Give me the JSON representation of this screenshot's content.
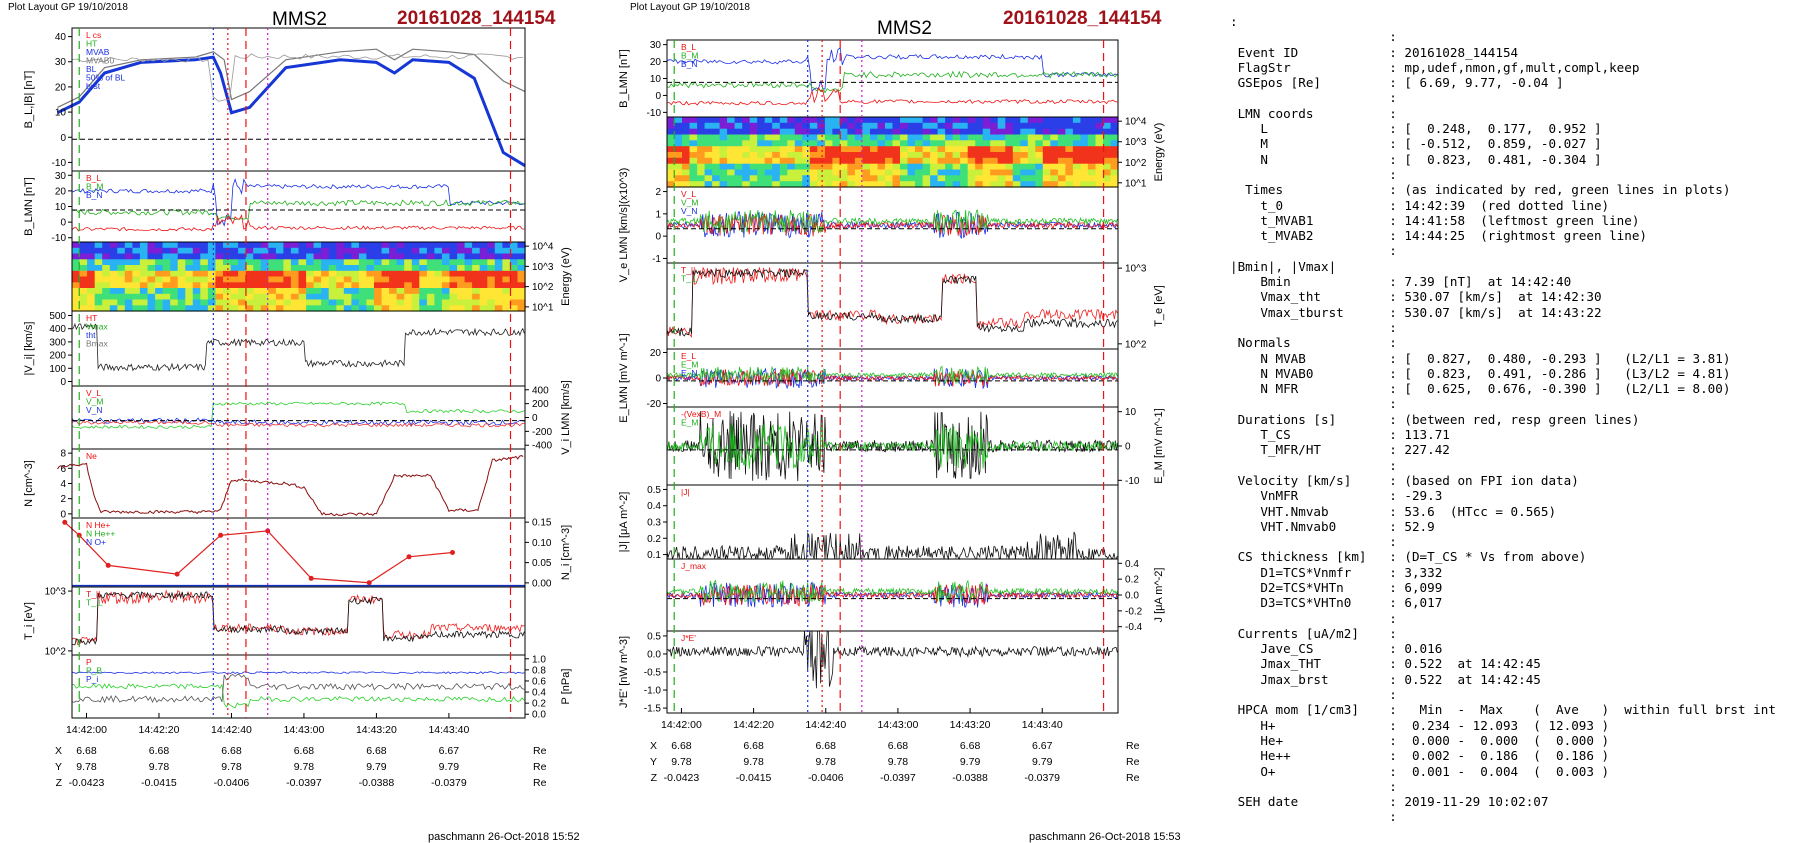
{
  "page_header": {
    "left": {
      "caption": "Plot Layout GP 19/10/2018",
      "spacecraft": "MMS2",
      "event": "20161028_144154",
      "footer": "paschmann 26-Oct-2018 15:52"
    },
    "middle": {
      "caption": "Plot Layout GP 19/10/2018",
      "spacecraft": "MMS2",
      "event": "20161028_144154",
      "footer": "paschmann 26-Oct-2018 15:53"
    }
  },
  "time_axis": {
    "tick_labels": [
      "14:42:00",
      "14:42:20",
      "14:42:40",
      "14:43:00",
      "14:43:20",
      "14:43:40"
    ],
    "tick_seconds": [
      0,
      20,
      40,
      60,
      80,
      100
    ],
    "range_seconds": [
      -4,
      121
    ],
    "markers": {
      "red_dashed": [
        44,
        117
      ],
      "red_dotted": 39,
      "green_dashed": [
        -2,
        145
      ],
      "blue_dotted": 35,
      "magenta_dotted": 50
    }
  },
  "position_rows": [
    {
      "label": "X",
      "values": [
        "6.68",
        "6.68",
        "6.68",
        "6.68",
        "6.68",
        "6.67"
      ],
      "unit": "Re"
    },
    {
      "label": "Y",
      "values": [
        "9.78",
        "9.78",
        "9.78",
        "9.78",
        "9.79",
        "9.79"
      ],
      "unit": "Re"
    },
    {
      "label": "Z",
      "values": [
        "-0.0423",
        "-0.0415",
        "-0.0406",
        "-0.0397",
        "-0.0388",
        "-0.0379"
      ],
      "unit": "Re"
    }
  ],
  "left_panels": [
    {
      "id": "bl",
      "ylabel": "B_L,|B| [nT]",
      "side": "left",
      "ticks": [
        "40",
        "30",
        "20",
        "10",
        "0",
        "-10"
      ],
      "legend": [
        "L cs",
        "HT",
        "MVAB",
        "MVAB0",
        "BL",
        "50% of BL",
        "brst"
      ]
    },
    {
      "id": "blmn",
      "ylabel": "B_LMN [nT]",
      "side": "left",
      "ticks": [
        "30",
        "20",
        "10",
        "0",
        "-10"
      ],
      "legend": [
        "B_L",
        "B_M",
        "B_N"
      ]
    },
    {
      "id": "espec",
      "ylabel": "Energy (eV)",
      "side": "right",
      "ticks": [
        "10^4",
        "10^3",
        "10^2",
        "10^1"
      ],
      "legend": []
    },
    {
      "id": "vi",
      "ylabel": "|V_i| [km/s]",
      "side": "left",
      "ticks": [
        "500",
        "400",
        "300",
        "200",
        "100",
        "0"
      ],
      "legend": [
        "HT",
        "Vmax",
        "tht",
        "Bmax"
      ]
    },
    {
      "id": "vilmn",
      "ylabel": "V_i LMN [km/s]",
      "side": "right",
      "ticks": [
        "400",
        "200",
        "0",
        "-200",
        "-400"
      ],
      "legend": [
        "V_L",
        "V_M",
        "V_N"
      ]
    },
    {
      "id": "n",
      "ylabel": "N [cm^-3]",
      "side": "left",
      "ticks": [
        "8",
        "6",
        "4",
        "2",
        "0"
      ],
      "legend": [
        "Ne"
      ]
    },
    {
      "id": "hpca",
      "ylabel": "N_i [cm^-3]",
      "side": "right",
      "ticks": [
        "0.15",
        "0.10",
        "0.05",
        "0.00"
      ],
      "legend": [
        "N He+",
        "N He++",
        "N O+"
      ]
    },
    {
      "id": "ti",
      "ylabel": "T_i [eV]",
      "side": "left",
      "ticks": [
        "10^3",
        "10^2"
      ],
      "legend": [
        "T_||",
        "T_⊥"
      ]
    },
    {
      "id": "p",
      "ylabel": "P [nPa]",
      "side": "right",
      "ticks": [
        "1.0",
        "0.8",
        "0.6",
        "0.4",
        "0.2",
        "0.0"
      ],
      "legend": [
        "P",
        "P_B",
        "P_i"
      ]
    }
  ],
  "middle_panels": [
    {
      "id": "blmn2",
      "ylabel": "B_LMN [nT]",
      "side": "left",
      "ticks": [
        "30",
        "20",
        "10",
        "0",
        "-10"
      ],
      "legend": [
        "B_L",
        "B_M",
        "B_N"
      ]
    },
    {
      "id": "especE",
      "ylabel": "Energy (eV)",
      "side": "right",
      "ticks": [
        "10^4",
        "10^3",
        "10^2",
        "10^1"
      ],
      "legend": []
    },
    {
      "id": "ve",
      "ylabel": "V_e LMN [km/s](x10^3)",
      "side": "left",
      "ticks": [
        "2",
        "1",
        "0",
        "-1"
      ],
      "legend": [
        "V_L",
        "V_M",
        "V_N"
      ]
    },
    {
      "id": "te",
      "ylabel": "T_e [eV]",
      "side": "right",
      "ticks": [
        "10^3",
        "10^2"
      ],
      "legend": [
        "T_||",
        "T_⊥"
      ]
    },
    {
      "id": "elmn",
      "ylabel": "E_LMN [mV m^-1]",
      "side": "left",
      "ticks": [
        "20",
        "0",
        "-20"
      ],
      "legend": [
        "E_L",
        "E_M",
        "E_N"
      ]
    },
    {
      "id": "em",
      "ylabel": "E_M [mV m^-1]",
      "side": "right",
      "ticks": [
        "10",
        "0",
        "-10"
      ],
      "legend": [
        "-(VexB)_M",
        "E_M"
      ]
    },
    {
      "id": "j",
      "ylabel": "|J| [μA m^-2]",
      "side": "left",
      "ticks": [
        "0.5",
        "0.4",
        "0.3",
        "0.2",
        "0.1"
      ],
      "legend": [
        "|J|"
      ]
    },
    {
      "id": "jlmn",
      "ylabel": "J [μA m^-2]",
      "side": "right",
      "ticks": [
        "0.4",
        "0.2",
        "0.0",
        "-0.2",
        "-0.4"
      ],
      "legend": [
        "J_max"
      ]
    },
    {
      "id": "jdote",
      "ylabel": "J*E' [nW m^-3]",
      "side": "left",
      "ticks": [
        "0.5",
        "0.0",
        "-0.5",
        "-1.0",
        "-1.5"
      ],
      "legend": [
        "J*E'"
      ]
    }
  ],
  "info_rows": [
    {
      "k": "",
      "v": ""
    },
    {
      "k": "Event ID",
      "v": "20161028_144154"
    },
    {
      "k": "FlagStr",
      "v": "mp,udef,nmon,gf,mult,compl,keep"
    },
    {
      "k": "GSEpos [Re]",
      "v": "[ 6.69, 9.77, -0.04 ]"
    },
    {
      "k": "",
      "v": ""
    },
    {
      "k": "LMN coords",
      "v": ""
    },
    {
      "k": "   L",
      "v": "[  0.248,  0.177,  0.952 ]"
    },
    {
      "k": "   M",
      "v": "[ -0.512,  0.859, -0.027 ]"
    },
    {
      "k": "   N",
      "v": "[  0.823,  0.481, -0.304 ]"
    },
    {
      "k": "",
      "v": ""
    },
    {
      "k": " Times",
      "v": "(as indicated by red, green lines in plots)"
    },
    {
      "k": "   t_0",
      "v": "14:42:39  (red dotted line)"
    },
    {
      "k": "   t_MVAB1",
      "v": "14:41:58  (leftmost green line)"
    },
    {
      "k": "   t_MVAB2",
      "v": "14:44:25  (rightmost green line)"
    },
    {
      "k": "",
      "v": ""
    },
    {
      "k": "|Bmin|, |Vmax|",
      "v": "",
      "bare": true
    },
    {
      "k": "   Bmin",
      "v": "7.39 [nT]  at 14:42:40"
    },
    {
      "k": "   Vmax_tht",
      "v": "530.07 [km/s]  at 14:42:30"
    },
    {
      "k": "   Vmax_tburst",
      "v": "530.07 [km/s]  at 14:43:22"
    },
    {
      "k": "",
      "v": ""
    },
    {
      "k": "Normals",
      "v": ""
    },
    {
      "k": "   N MVAB",
      "v": "[  0.827,  0.480, -0.293 ]   (L2/L1 = 3.81)"
    },
    {
      "k": "   N MVAB0",
      "v": "[  0.823,  0.491, -0.286 ]   (L3/L2 = 4.81)"
    },
    {
      "k": "   N MFR",
      "v": "[  0.625,  0.676, -0.390 ]   (L2/L1 = 8.00)"
    },
    {
      "k": "",
      "v": ""
    },
    {
      "k": "Durations [s]",
      "v": "(between red, resp green lines)"
    },
    {
      "k": "   T_CS",
      "v": "113.71"
    },
    {
      "k": "   T_MFR/HT",
      "v": "227.42"
    },
    {
      "k": "",
      "v": ""
    },
    {
      "k": "Velocity [km/s]",
      "v": "(based on FPI ion data)"
    },
    {
      "k": "   VnMFR",
      "v": "-29.3"
    },
    {
      "k": "   VHT.Nmvab",
      "v": "53.6  (HTcc = 0.565)"
    },
    {
      "k": "   VHT.Nmvab0",
      "v": "52.9"
    },
    {
      "k": "",
      "v": ""
    },
    {
      "k": "CS thickness [km]",
      "v": "(D=T_CS * Vs from above)"
    },
    {
      "k": "   D1=TCS*Vnmfr",
      "v": "3,332"
    },
    {
      "k": "   D2=TCS*VHTn",
      "v": "6,099"
    },
    {
      "k": "   D3=TCS*VHTn0",
      "v": "6,017"
    },
    {
      "k": "",
      "v": ""
    },
    {
      "k": "Currents [uA/m2]",
      "v": ""
    },
    {
      "k": "   Jave_CS",
      "v": "0.016"
    },
    {
      "k": "   Jmax_THT",
      "v": "0.522  at 14:42:45"
    },
    {
      "k": "   Jmax_brst",
      "v": "0.522  at 14:42:45"
    },
    {
      "k": "",
      "v": ""
    },
    {
      "k": "HPCA mom [1/cm3]",
      "v": "  Min  -  Max    (  Ave   )  within full brst int"
    },
    {
      "k": "   H+",
      "v": " 0.234 - 12.093  ( 12.093 )"
    },
    {
      "k": "   He+",
      "v": " 0.000 -  0.000  (  0.000 )"
    },
    {
      "k": "   He++",
      "v": " 0.002 -  0.186  (  0.186 )"
    },
    {
      "k": "   O+",
      "v": " 0.001 -  0.004  (  0.003 )"
    },
    {
      "k": "",
      "v": ""
    },
    {
      "k": "SEH date",
      "v": "2019-11-29 10:02:07"
    },
    {
      "k": "",
      "v": ""
    }
  ],
  "chart_data": [
    {
      "type": "line",
      "panel": "B_L,|B| [nT]",
      "ylim": [
        -12,
        42
      ],
      "x_unit": "s after 14:42:00",
      "series": [
        {
          "name": "BL",
          "x": [
            -8,
            -2,
            5,
            15,
            30,
            35,
            37,
            40,
            45,
            55,
            70,
            80,
            85,
            90,
            100,
            107,
            115,
            121
          ],
          "values": [
            10,
            14,
            25,
            29,
            30,
            31,
            25,
            10,
            12,
            27,
            30,
            29,
            25,
            30,
            29,
            23,
            -5,
            -10
          ]
        },
        {
          "name": "HT",
          "x": [
            -8,
            -2,
            5,
            15,
            30,
            35,
            38,
            40,
            45,
            55,
            70,
            80,
            85,
            90,
            100,
            107,
            115,
            121
          ],
          "values": [
            12,
            16,
            27,
            30,
            31,
            33,
            30,
            15,
            18,
            30,
            33,
            34,
            30,
            34,
            33,
            32,
            22,
            18
          ]
        }
      ]
    },
    {
      "type": "line",
      "panel": "N [cm^-3]",
      "ylim": [
        0,
        9
      ],
      "x_unit": "s after 14:42:00",
      "series": [
        {
          "name": "Ne",
          "x": [
            -8,
            -4,
            0,
            2,
            4,
            34,
            37,
            40,
            55,
            60,
            65,
            80,
            85,
            95,
            100,
            108,
            112,
            121
          ],
          "values": [
            6.5,
            7,
            7,
            3,
            0.8,
            0.8,
            1,
            5,
            4.5,
            4,
            0.5,
            0.5,
            5.5,
            5.5,
            1,
            1,
            7.5,
            8
          ]
        }
      ]
    },
    {
      "type": "scatter",
      "panel": "N_i [cm^-3]",
      "ylim": [
        0,
        0.16
      ],
      "x_unit": "s after 14:42:00",
      "series": [
        {
          "name": "N He++",
          "x": [
            -6,
            -2,
            6,
            25,
            37,
            50,
            62,
            78,
            89,
            101
          ],
          "values": [
            0.15,
            0.12,
            0.05,
            0.03,
            0.12,
            0.13,
            0.02,
            0.01,
            0.07,
            0.08
          ]
        }
      ]
    },
    {
      "type": "line",
      "panel": "P [nPa]",
      "ylim": [
        0,
        1
      ],
      "x_unit": "s after 14:42:00",
      "series": [
        {
          "name": "P",
          "x": [
            -8,
            0,
            40,
            60,
            80,
            100,
            121
          ],
          "values": [
            0.85,
            0.85,
            0.75,
            0.75,
            0.75,
            0.75,
            0.7
          ]
        },
        {
          "name": "P_B",
          "x": [
            -8,
            0,
            38,
            45,
            60,
            80,
            100,
            121
          ],
          "values": [
            0.5,
            0.55,
            0.5,
            0.15,
            0.2,
            0.15,
            0.2,
            0.45
          ]
        }
      ]
    }
  ]
}
